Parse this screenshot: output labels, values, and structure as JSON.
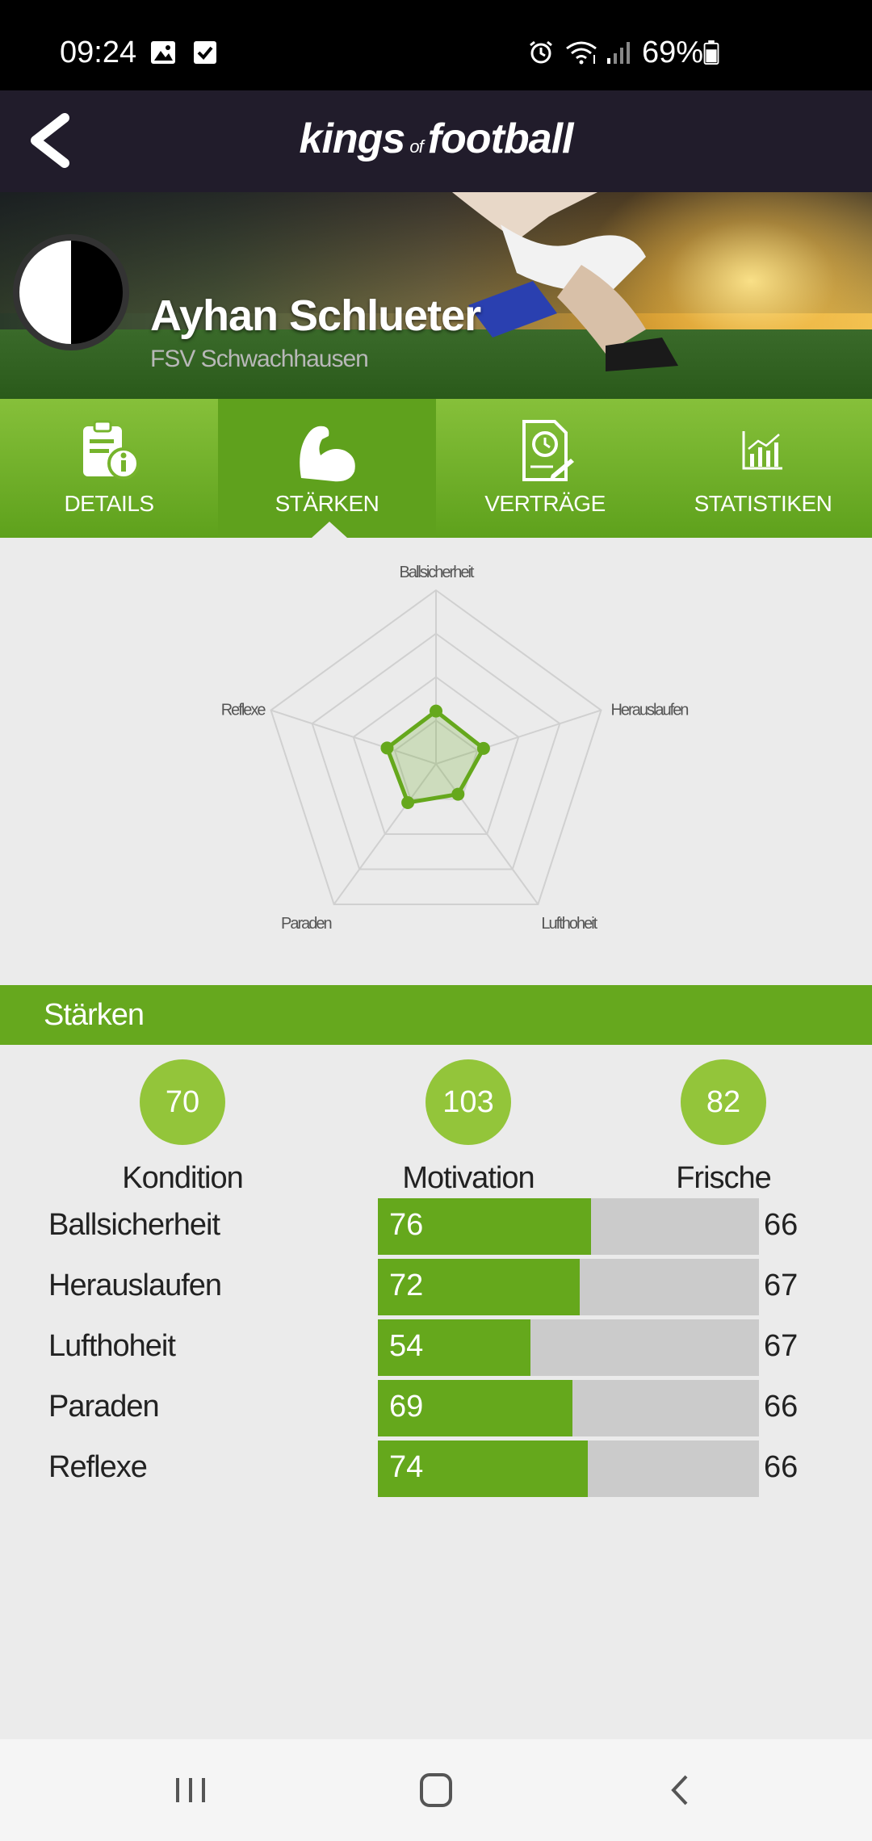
{
  "status_bar": {
    "time": "09:24",
    "battery": "69%"
  },
  "app": {
    "logo_kings": "kings",
    "logo_of": "of",
    "logo_football": "football"
  },
  "player": {
    "name": "Ayhan Schlueter",
    "club": "FSV Schwachhausen"
  },
  "tabs": [
    {
      "label": "DETAILS",
      "icon": "document-info-icon",
      "active": false
    },
    {
      "label": "STÄRKEN",
      "icon": "flexed-arm-icon",
      "active": true
    },
    {
      "label": "VERTRÄGE",
      "icon": "contract-clock-icon",
      "active": false
    },
    {
      "label": "STATISTIKEN",
      "icon": "chart-icon",
      "active": false
    }
  ],
  "chart_data": {
    "type": "radar",
    "axes": [
      "Ballsicherheit",
      "Herauslaufen",
      "Lufthoheit",
      "Paraden",
      "Reflexe"
    ],
    "axis_labels_display": [
      "Ballsicherheit",
      "Herauslaufen",
      "Lufthoheit",
      "Paraden",
      "Reflexe"
    ],
    "values": [
      76,
      72,
      54,
      69,
      74
    ],
    "range": [
      0,
      250
    ],
    "rings": 4,
    "color": "#65a81c"
  },
  "section": {
    "title": "Stärken"
  },
  "metrics": [
    {
      "value": "70",
      "label": "Kondition"
    },
    {
      "value": "103",
      "label": "Motivation"
    },
    {
      "value": "82",
      "label": "Frische"
    }
  ],
  "stats": [
    {
      "label": "Ballsicherheit",
      "value": "76",
      "fraction": 0.56,
      "right": "66"
    },
    {
      "label": "Herauslaufen",
      "value": "72",
      "fraction": 0.53,
      "right": "67"
    },
    {
      "label": "Lufthoheit",
      "value": "54",
      "fraction": 0.4,
      "right": "67"
    },
    {
      "label": "Paraden",
      "value": "69",
      "fraction": 0.51,
      "right": "66"
    },
    {
      "label": "Reflexe",
      "value": "74",
      "fraction": 0.55,
      "right": "66"
    }
  ],
  "colors": {
    "accent": "#65a81c",
    "appbar": "#211c2b",
    "badge": "#93c53a"
  }
}
